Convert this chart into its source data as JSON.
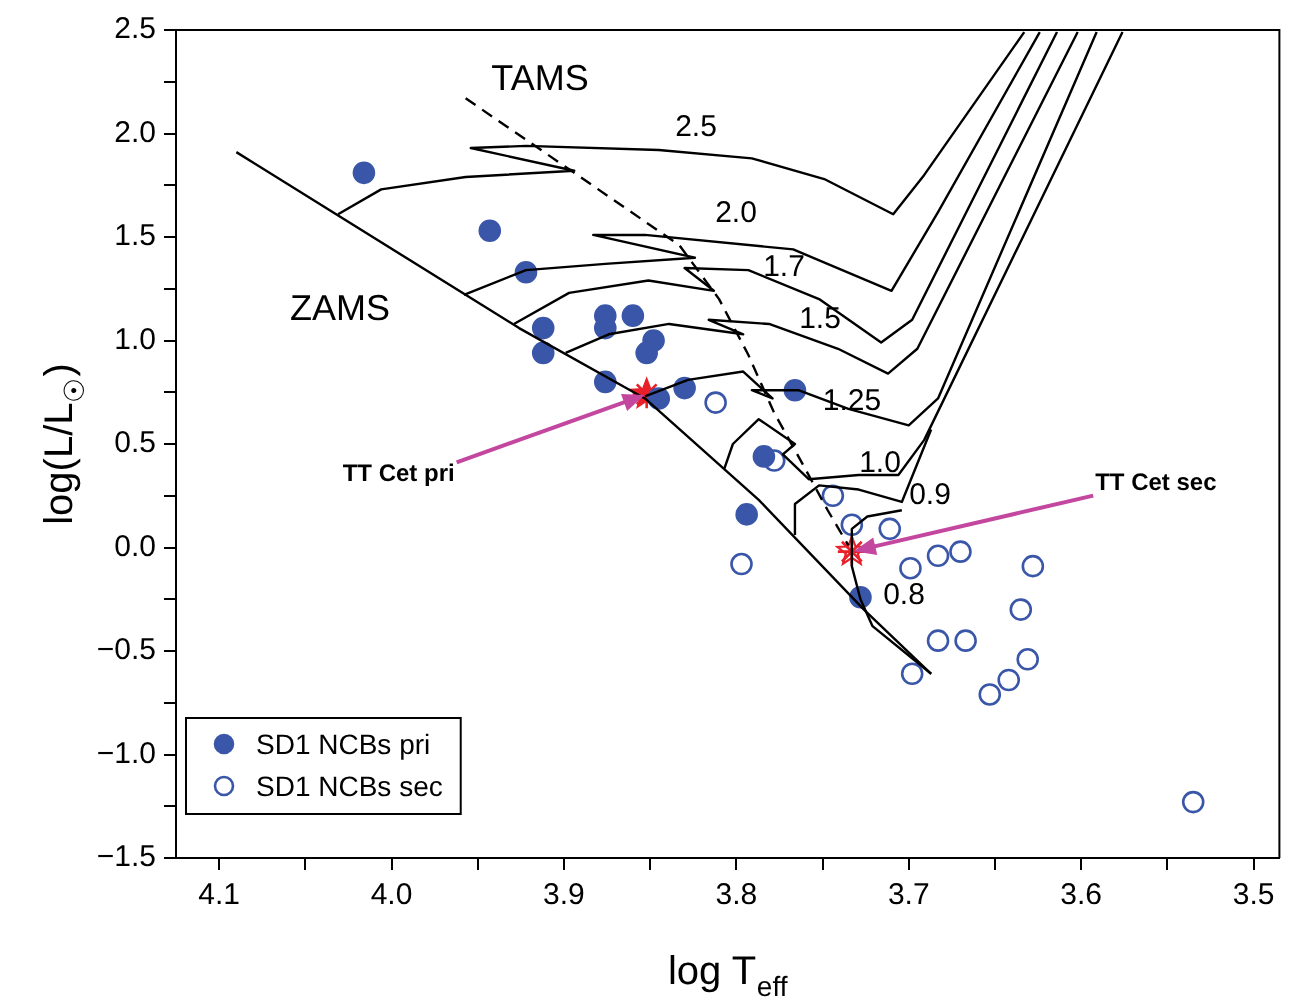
{
  "chart_data": {
    "type": "scatter",
    "xlabel": "log T$_{eff}$",
    "ylabel": "log(L/L$_{☉}$)",
    "xlim": [
      4.125,
      3.485
    ],
    "ylim": [
      -1.5,
      2.5
    ],
    "xticks": [
      {
        "value": 4.1,
        "label": "4.1"
      },
      {
        "value": 4.05,
        "label": null
      },
      {
        "value": 4.0,
        "label": "4.0"
      },
      {
        "value": 3.95,
        "label": null
      },
      {
        "value": 3.9,
        "label": "3.9"
      },
      {
        "value": 3.85,
        "label": null
      },
      {
        "value": 3.8,
        "label": "3.8"
      },
      {
        "value": 3.75,
        "label": null
      },
      {
        "value": 3.7,
        "label": "3.7"
      },
      {
        "value": 3.65,
        "label": null
      },
      {
        "value": 3.6,
        "label": "3.6"
      },
      {
        "value": 3.55,
        "label": null
      },
      {
        "value": 3.5,
        "label": "3.5"
      }
    ],
    "yticks": [
      {
        "value": -1.5,
        "label": "−1.5"
      },
      {
        "value": -1.25,
        "label": null
      },
      {
        "value": -1.0,
        "label": "−1.0"
      },
      {
        "value": -0.75,
        "label": null
      },
      {
        "value": -0.5,
        "label": "−0.5"
      },
      {
        "value": -0.25,
        "label": null
      },
      {
        "value": 0,
        "label": "0.0"
      },
      {
        "value": 0.25,
        "label": null
      },
      {
        "value": 0.5,
        "label": "0.5"
      },
      {
        "value": 0.75,
        "label": null
      },
      {
        "value": 1.0,
        "label": "1.0"
      },
      {
        "value": 1.25,
        "label": null
      },
      {
        "value": 1.5,
        "label": "1.5"
      },
      {
        "value": 1.75,
        "label": null
      },
      {
        "value": 2.0,
        "label": "2.0"
      },
      {
        "value": 2.25,
        "label": null
      },
      {
        "value": 2.5,
        "label": "2.5"
      }
    ],
    "grid": false,
    "legend": "bottom left",
    "series": [
      {
        "name": "ZAMS",
        "type": "line",
        "color": "#000000",
        "marker": "none",
        "line_style": "solid",
        "x": [
          4.09,
          3.926,
          3.853,
          3.787,
          3.726,
          3.687
        ],
        "values": [
          1.91,
          1.06,
          0.72,
          0.23,
          -0.3,
          -0.61
        ]
      },
      {
        "name": "TAMS",
        "type": "line",
        "color": "#000000",
        "marker": "none",
        "line_style": "dashed",
        "x": [
          3.957,
          3.894,
          3.833,
          3.81,
          3.793,
          3.778,
          3.762,
          3.747,
          3.735
        ],
        "values": [
          2.17,
          1.81,
          1.46,
          1.2,
          0.93,
          0.65,
          0.41,
          0.18,
          0.01
        ]
      },
      {
        "name": "2.5",
        "type": "line",
        "color": "#000000",
        "marker": "none",
        "line_style": "solid",
        "x": [
          4.031,
          4.006,
          3.957,
          3.894,
          3.954,
          3.922,
          3.845,
          3.791,
          3.749,
          3.709,
          3.691,
          3.633
        ],
        "values": [
          1.61,
          1.73,
          1.79,
          1.82,
          1.93,
          1.94,
          1.92,
          1.88,
          1.78,
          1.61,
          1.8,
          2.49
        ]
      },
      {
        "name": "2.0",
        "type": "line",
        "color": "#000000",
        "marker": "none",
        "line_style": "solid",
        "x": [
          3.958,
          3.922,
          3.876,
          3.824,
          3.883,
          3.853,
          3.767,
          3.71,
          3.683,
          3.624
        ],
        "values": [
          1.22,
          1.34,
          1.37,
          1.4,
          1.51,
          1.51,
          1.44,
          1.24,
          1.62,
          2.49
        ]
      },
      {
        "name": "1.7",
        "type": "line",
        "color": "#000000",
        "marker": "none",
        "line_style": "solid",
        "x": [
          3.929,
          3.897,
          3.851,
          3.813,
          3.83,
          3.793,
          3.752,
          3.716,
          3.698,
          3.614
        ],
        "values": [
          1.08,
          1.23,
          1.29,
          1.24,
          1.35,
          1.34,
          1.2,
          0.99,
          1.1,
          2.49
        ]
      },
      {
        "name": "1.5",
        "type": "line",
        "color": "#000000",
        "marker": "none",
        "line_style": "solid",
        "x": [
          3.899,
          3.874,
          3.839,
          3.796,
          3.816,
          3.781,
          3.741,
          3.712,
          3.695,
          3.602
        ],
        "values": [
          0.94,
          1.03,
          1.08,
          1.03,
          1.1,
          1.08,
          0.96,
          0.84,
          0.96,
          2.49
        ]
      },
      {
        "name": "1.25",
        "type": "line",
        "color": "#000000",
        "marker": "none",
        "line_style": "solid",
        "x": [
          3.853,
          3.828,
          3.796,
          3.779,
          3.791,
          3.764,
          3.735,
          3.7,
          3.683,
          3.591
        ],
        "values": [
          0.73,
          0.81,
          0.85,
          0.72,
          0.76,
          0.76,
          0.67,
          0.59,
          0.72,
          2.49
        ]
      },
      {
        "name": "1.0",
        "type": "line",
        "color": "#000000",
        "marker": "none",
        "line_style": "solid",
        "x": [
          3.807,
          3.802,
          3.787,
          3.766,
          3.773,
          3.758,
          3.729,
          3.706,
          3.691,
          3.576
        ],
        "values": [
          0.38,
          0.5,
          0.62,
          0.5,
          0.45,
          0.33,
          0.35,
          0.35,
          0.52,
          2.49
        ]
      },
      {
        "name": "0.9",
        "type": "line",
        "color": "#000000",
        "marker": "none",
        "line_style": "solid",
        "x": [
          3.766,
          3.766,
          3.752,
          3.729,
          3.704,
          3.687
        ],
        "values": [
          0.06,
          0.21,
          0.3,
          0.28,
          0.22,
          0.57
        ]
      },
      {
        "name": "0.8",
        "type": "line",
        "color": "#000000",
        "marker": "none",
        "line_style": "solid",
        "x": [
          3.687,
          3.721,
          3.728,
          3.733,
          3.733,
          3.724,
          3.704
        ],
        "values": [
          -0.61,
          -0.38,
          -0.25,
          -0.09,
          0.09,
          0.15,
          0.18
        ]
      },
      {
        "name": "SD1 NCBs pri",
        "color": "#3a56a8",
        "marker": "circle",
        "x": [
          4.016,
          3.943,
          3.922,
          3.912,
          3.912,
          3.876,
          3.876,
          3.86,
          3.848,
          3.852,
          3.876,
          3.845,
          3.83,
          3.766,
          3.794,
          3.784,
          3.728
        ],
        "values": [
          1.81,
          1.53,
          1.33,
          1.06,
          0.94,
          1.12,
          1.06,
          1.12,
          1.0,
          0.94,
          0.8,
          0.72,
          0.77,
          0.76,
          0.16,
          0.44,
          -0.24
        ]
      },
      {
        "name": "SD1 NCBs sec",
        "color": "#3a56a8",
        "marker": "circle",
        "x": [
          3.812,
          3.778,
          3.744,
          3.733,
          3.711,
          3.797,
          3.699,
          3.683,
          3.67,
          3.628,
          3.635,
          3.683,
          3.667,
          3.631,
          3.642,
          3.653,
          3.698,
          3.535
        ],
        "values": [
          0.7,
          0.42,
          0.25,
          0.11,
          0.09,
          -0.08,
          -0.1,
          -0.04,
          -0.02,
          -0.09,
          -0.3,
          -0.45,
          -0.45,
          -0.54,
          -0.64,
          -0.71,
          -0.61,
          -1.23
        ]
      },
      {
        "color": "#e8202a",
        "marker": "star",
        "x": [
          3.852
        ],
        "values": [
          0.74
        ]
      },
      {
        "color": "#e8202a",
        "marker": "star",
        "x": [
          3.733
        ],
        "values": [
          -0.02
        ]
      }
    ],
    "annotations": [
      {
        "text": "TT Cet pri",
        "x": 3.852,
        "y": 0.74
      },
      {
        "text": "TT Cet sec",
        "x": 3.733,
        "y": -0.02
      }
    ]
  }
}
